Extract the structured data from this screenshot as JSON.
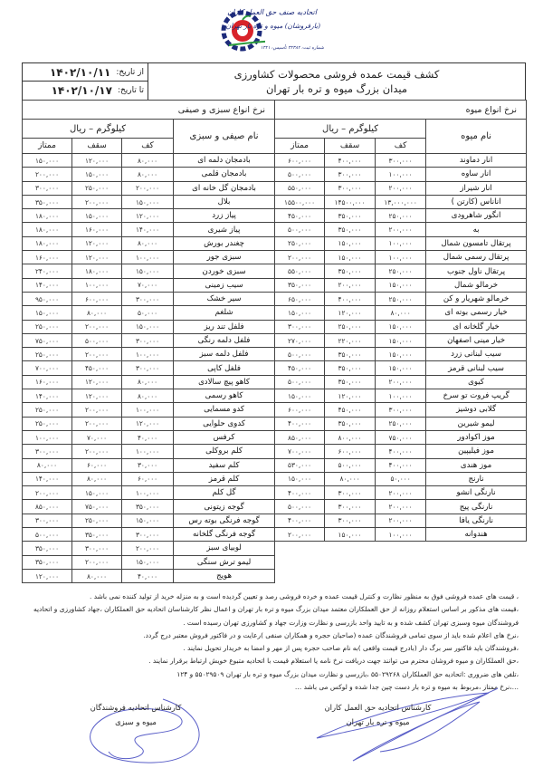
{
  "logo": {
    "line1": "اتحادیه صنف حق العمل کاران",
    "line2": "(بارفروشان) میوه و تره بار تهران",
    "line3": "شماره ثبت: ۳۲۳۸۲    تأسیس: ۱۳۲۱",
    "colors": {
      "blue": "#1c2a7a",
      "red": "#d8232a",
      "green": "#2a9a3c"
    }
  },
  "header": {
    "title_line1": "کشف قیمت عمده فروشی محصولات کشاورزی",
    "title_line2": "میدان بزرگ میوه و تره بار تهران",
    "from_label": "از تاریخ:",
    "from_date": "۱۴۰۲/۱۰/۱۱",
    "to_label": "تا تاریخ:",
    "to_date": "۱۴۰۲/۱۰/۱۷"
  },
  "fruits": {
    "section_title": "نرخ انواع میوه",
    "name_header": "نام میوه",
    "unit_header": "کیلوگرم – ریال",
    "col_low": "کف",
    "col_high": "سقف",
    "col_premium": "ممتاز",
    "rows": [
      {
        "name": "انار دماوند",
        "low": "۳۰۰,۰۰۰",
        "high": "۴۰۰,۰۰۰",
        "premium": "۶۰۰,۰۰۰"
      },
      {
        "name": "انار ساوه",
        "low": "۱۰۰,۰۰۰",
        "high": "۳۰۰,۰۰۰",
        "premium": "۵۰۰,۰۰۰"
      },
      {
        "name": "انار شیراز",
        "low": "۲۰۰,۰۰۰",
        "high": "۳۰۰,۰۰۰",
        "premium": "۵۵۰,۰۰۰"
      },
      {
        "name": "اناناس (کارتن )",
        "low": "۱۳,۰۰۰,۰۰۰",
        "high": "۱۴۵۰۰,۰۰۰",
        "premium": "۱۵۵۰۰,۰۰۰"
      },
      {
        "name": "انگور شاهرودی",
        "low": "۲۵۰,۰۰۰",
        "high": "۳۵۰,۰۰۰",
        "premium": "۴۵۰,۰۰۰"
      },
      {
        "name": "به",
        "low": "۲۰۰,۰۰۰",
        "high": "۳۵۰,۰۰۰",
        "premium": "۵۰۰,۰۰۰"
      },
      {
        "name": "پرتقال تامسون شمال",
        "low": "۱۰۰,۰۰۰",
        "high": "۱۵۰,۰۰۰",
        "premium": "۲۵۰,۰۰۰"
      },
      {
        "name": "پرتقال رسمی شمال",
        "low": "۱۰۰,۰۰۰",
        "high": "۱۵۰,۰۰۰",
        "premium": "۲۰۰,۰۰۰"
      },
      {
        "name": "پرتقال ناول جنوب",
        "low": "۲۵۰,۰۰۰",
        "high": "۳۵۰,۰۰۰",
        "premium": "۵۵۰,۰۰۰"
      },
      {
        "name": "خرمالو شمال",
        "low": "۱۵۰,۰۰۰",
        "high": "۲۰۰,۰۰۰",
        "premium": "۳۵۰,۰۰۰"
      },
      {
        "name": "خرمالو شهریار و کن",
        "low": "۲۵۰,۰۰۰",
        "high": "۴۰۰,۰۰۰",
        "premium": "۶۵۰,۰۰۰"
      },
      {
        "name": "خیار رسمی بوته ای",
        "low": "۸۰,۰۰۰",
        "high": "۱۲۰,۰۰۰",
        "premium": "۱۵۰,۰۰۰"
      },
      {
        "name": "خیار گلخانه ای",
        "low": "۱۵۰,۰۰۰",
        "high": "۲۵۰,۰۰۰",
        "premium": "۳۰۰,۰۰۰"
      },
      {
        "name": "خیار مینی اصفهان",
        "low": "۱۵۰,۰۰۰",
        "high": "۲۲۰,۰۰۰",
        "premium": "۲۷۰,۰۰۰"
      },
      {
        "name": "سیب لبنانی زرد",
        "low": "۱۵۰,۰۰۰",
        "high": "۳۵۰,۰۰۰",
        "premium": "۵۰۰,۰۰۰"
      },
      {
        "name": "سیب لبنانی قرمز",
        "low": "۱۵۰,۰۰۰",
        "high": "۳۵۰,۰۰۰",
        "premium": "۴۵۰,۰۰۰"
      },
      {
        "name": "کیوی",
        "low": "۲۰۰,۰۰۰",
        "high": "۳۵۰,۰۰۰",
        "premium": "۵۰۰,۰۰۰"
      },
      {
        "name": "گریپ فروت تو سرخ",
        "low": "۱۰۰,۰۰۰",
        "high": "۱۲۰,۰۰۰",
        "premium": "۱۵۰,۰۰۰"
      },
      {
        "name": "گلابی دوشیز",
        "low": "۳۰۰,۰۰۰",
        "high": "۴۵۰,۰۰۰",
        "premium": "۶۰۰,۰۰۰"
      },
      {
        "name": "لیمو شیرین",
        "low": "۲۵۰,۰۰۰",
        "high": "۳۵۰,۰۰۰",
        "premium": "۴۰۰,۰۰۰"
      },
      {
        "name": "موز اکوادور",
        "low": "۷۵۰,۰۰۰",
        "high": "۸۰۰,۰۰۰",
        "premium": "۸۵۰,۰۰۰"
      },
      {
        "name": "موز فیلیپین",
        "low": "۴۰۰,۰۰۰",
        "high": "۶۰۰,۰۰۰",
        "premium": "۷۰۰,۰۰۰"
      },
      {
        "name": "موز هندی",
        "low": "۴۰۰,۰۰۰",
        "high": "۵۰۰,۰۰۰",
        "premium": "۵۳۰,۰۰۰"
      },
      {
        "name": "نارنج",
        "low": "۵۰,۰۰۰",
        "high": "۸۰,۰۰۰",
        "premium": "۱۵۰,۰۰۰"
      },
      {
        "name": "نارنگی انشو",
        "low": "۲۰۰,۰۰۰",
        "high": "۳۰۰,۰۰۰",
        "premium": "۴۰۰,۰۰۰"
      },
      {
        "name": "نارنگی پیج",
        "low": "۲۰۰,۰۰۰",
        "high": "۳۰۰,۰۰۰",
        "premium": "۵۰۰,۰۰۰"
      },
      {
        "name": "نارنگی یافا",
        "low": "۲۰۰,۰۰۰",
        "high": "۳۰۰,۰۰۰",
        "premium": "۴۰۰,۰۰۰"
      },
      {
        "name": "هندوانه",
        "low": "۱۰۰,۰۰۰",
        "high": "۱۵۰,۰۰۰",
        "premium": "۲۰۰,۰۰۰"
      }
    ]
  },
  "vegetables": {
    "section_title": "نرخ انواع سبزی و صیفی",
    "name_header": "نام صیفی و سبزی",
    "unit_header": "کیلوگرم – ریال",
    "col_low": "کف",
    "col_high": "سقف",
    "col_premium": "ممتاز",
    "rows": [
      {
        "name": "بادمجان دلمه ای",
        "low": "۸۰,۰۰۰",
        "high": "۱۲۰,۰۰۰",
        "premium": "۱۵۰,۰۰۰"
      },
      {
        "name": "بادمجان قلمی",
        "low": "۸۰,۰۰۰",
        "high": "۱۵۰,۰۰۰",
        "premium": "۲۰۰,۰۰۰"
      },
      {
        "name": "بادمجان گل خانه ای",
        "low": "۲۰۰,۰۰۰",
        "high": "۲۵۰,۰۰۰",
        "premium": "۳۰۰,۰۰۰"
      },
      {
        "name": "بلال",
        "low": "۱۵۰,۰۰۰",
        "high": "۲۰۰,۰۰۰",
        "premium": "۳۵۰,۰۰۰"
      },
      {
        "name": "پیاز زرد",
        "low": "۱۲۰,۰۰۰",
        "high": "۱۵۰,۰۰۰",
        "premium": "۱۸۰,۰۰۰"
      },
      {
        "name": "پیاز شیری",
        "low": "۱۴۰,۰۰۰",
        "high": "۱۶۰,۰۰۰",
        "premium": "۱۸۰,۰۰۰"
      },
      {
        "name": "چغندر بورش",
        "low": "۸۰,۰۰۰",
        "high": "۱۲۰,۰۰۰",
        "premium": "۱۸۰,۰۰۰"
      },
      {
        "name": "سبزی جور",
        "low": "۱۰۰,۰۰۰",
        "high": "۱۲۰,۰۰۰",
        "premium": "۱۶۰,۰۰۰"
      },
      {
        "name": "سبزی خوردن",
        "low": "۱۵۰,۰۰۰",
        "high": "۱۸۰,۰۰۰",
        "premium": "۲۴۰,۰۰۰"
      },
      {
        "name": "سیب زمینی",
        "low": "۷۰,۰۰۰",
        "high": "۱۰۰,۰۰۰",
        "premium": "۱۴۰,۰۰۰"
      },
      {
        "name": "سیر خشک",
        "low": "۳۰۰,۰۰۰",
        "high": "۶۰۰,۰۰۰",
        "premium": "۹۵۰,۰۰۰"
      },
      {
        "name": "شلغم",
        "low": "۵۰,۰۰۰",
        "high": "۸۰,۰۰۰",
        "premium": "۱۵۰,۰۰۰"
      },
      {
        "name": "فلفل تند ریز",
        "low": "۱۵۰,۰۰۰",
        "high": "۲۰۰,۰۰۰",
        "premium": "۲۵۰,۰۰۰"
      },
      {
        "name": "فلفل دلمه رنگی",
        "low": "۳۰۰,۰۰۰",
        "high": "۵۰۰,۰۰۰",
        "premium": "۷۵۰,۰۰۰"
      },
      {
        "name": "فلفل دلمه سبز",
        "low": "۱۰۰,۰۰۰",
        "high": "۲۰۰,۰۰۰",
        "premium": "۲۵۰,۰۰۰"
      },
      {
        "name": "فلفل کاپی",
        "low": "۳۰۰,۰۰۰",
        "high": "۴۵۰,۰۰۰",
        "premium": "۷۰۰,۰۰۰"
      },
      {
        "name": "کاهو پیچ سالادی",
        "low": "۸۰,۰۰۰",
        "high": "۱۲۰,۰۰۰",
        "premium": "۱۶۰,۰۰۰"
      },
      {
        "name": "کاهو رسمی",
        "low": "۸۰,۰۰۰",
        "high": "۱۲۰,۰۰۰",
        "premium": "۱۴۰,۰۰۰"
      },
      {
        "name": "کدو مسمایی",
        "low": "۱۰۰,۰۰۰",
        "high": "۲۰۰,۰۰۰",
        "premium": "۲۵۰,۰۰۰"
      },
      {
        "name": "کدوی حلوایی",
        "low": "۱۲۰,۰۰۰",
        "high": "۲۰۰,۰۰۰",
        "premium": "۲۵۰,۰۰۰"
      },
      {
        "name": "کرفس",
        "low": "۴۰,۰۰۰",
        "high": "۷۰,۰۰۰",
        "premium": "۱۰۰,۰۰۰"
      },
      {
        "name": "کلم بروکلی",
        "low": "۱۰۰,۰۰۰",
        "high": "۲۰۰,۰۰۰",
        "premium": "۳۰۰,۰۰۰"
      },
      {
        "name": "کلم سفید",
        "low": "۳۰,۰۰۰",
        "high": "۶۰,۰۰۰",
        "premium": "۸۰,۰۰۰"
      },
      {
        "name": "کلم قرمز",
        "low": "۶۰,۰۰۰",
        "high": "۸۰,۰۰۰",
        "premium": "۱۴۰,۰۰۰"
      },
      {
        "name": "گل کلم",
        "low": "۱۰۰,۰۰۰",
        "high": "۱۵۰,۰۰۰",
        "premium": "۲۰۰,۰۰۰"
      },
      {
        "name": "گوجه زیتونی",
        "low": "۳۵۰,۰۰۰",
        "high": "۷۵۰,۰۰۰",
        "premium": "۸۵۰,۰۰۰"
      },
      {
        "name": "گوجه فرنگی بوته رس",
        "low": "۱۵۰,۰۰۰",
        "high": "۲۵۰,۰۰۰",
        "premium": "۳۰۰,۰۰۰"
      },
      {
        "name": "گوجه فرنگی گلخانه",
        "low": "۳۰۰,۰۰۰",
        "high": "۳۵۰,۰۰۰",
        "premium": "۵۰۰,۰۰۰"
      },
      {
        "name": "لوبیای سبز",
        "low": "۲۰۰,۰۰۰",
        "high": "۳۰۰,۰۰۰",
        "premium": "۳۵۰,۰۰۰"
      },
      {
        "name": "لیمو ترش سنگی",
        "low": "۱۵۰,۰۰۰",
        "high": "۲۰۰,۰۰۰",
        "premium": "۳۵۰,۰۰۰"
      },
      {
        "name": "هویج",
        "low": "۴۰,۰۰۰",
        "high": "۸۰,۰۰۰",
        "premium": "۱۲۰,۰۰۰"
      }
    ]
  },
  "notes": [
    "، قیمت های عمده فروشی فوق  به منظور نظارت و کنترل قیمت عمده و خرده فروشی رصد و تعیین گردیده است و به منزله خرید از تولید کننده نمی باشد .",
    "،قیمت های مذکور بر اساس استعلام روزانه از حق العملکاران معتمد میدان بزرگ میوه و تره بار تهران و اعمال نظر کارشناسان اتحادیه حق العملکاران ،جهاد کشاورزی و اتحادیه فروشندگان میوه وسبزی تهران کشف شده و به تایید واحد بازرسی و نظارت وزارت جهاد و کشاورزی تهران رسیده است .",
    "،نرخ های اعلام شده باید از سوی تمامی فروشندگان عمده (صاحبان حجره و همکاران صنفی )رعایت و در فاکتور فروش معتبر درج گردد.",
    "،فروشندگان باید فاکتور سر برگ دار (بادرج قیمت واقعی )به نام صاحب حجره پس از مهر و امضا به خریدار تحویل نمایند .",
    "،حق العملکاران و میوه فروشان محترم می توانند جهت دریافت نرخ نامه یا استعلام قیمت با اتحادیه متبوع خویش ارتباط برقرار نمایند .",
    "،تلفن های ضروری :اتحادیه حق العملکاران ۵۵۰۲۹۲۶۸   ،بازرسی و نظارت میدان بزرگ میوه و تره بار  تهران ۵۵۰۲۹۵۰۹  و  ۱۲۴",
    "…،نرخ ممتاز ،مربوط به میوه و تره بار دست چین جدا شده و لوکس می باشد …"
  ],
  "signatures": {
    "left_line1": "کارشناس اتحادیه فروشندگان",
    "left_line2": "میوه و سبزی",
    "right_line1": "کارشناس اتحادیه حق العمل کاران",
    "right_line2": "میوه و تره بار تهران",
    "ink_color": "#5a5fc8"
  }
}
